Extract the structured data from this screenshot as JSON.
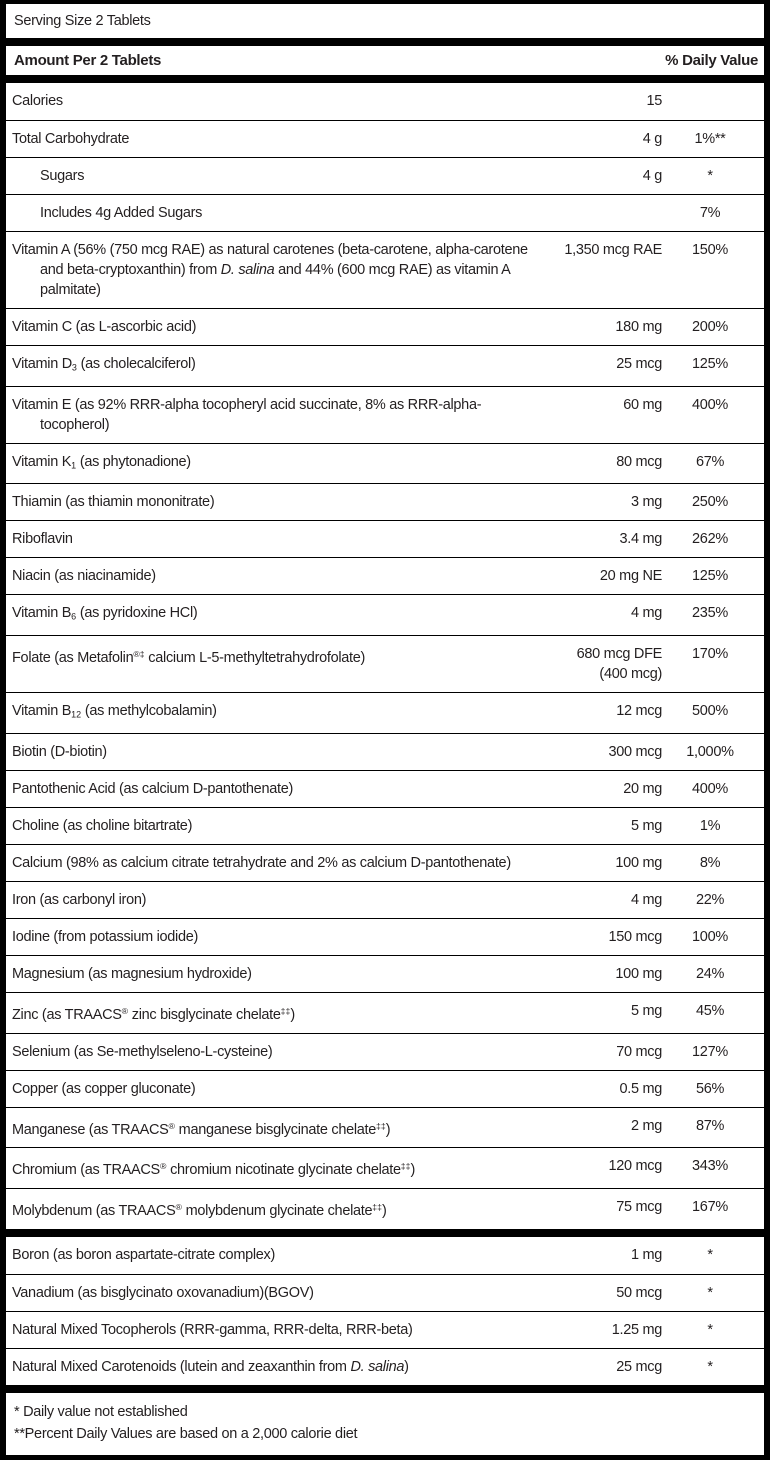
{
  "panel": {
    "serving_size": "Serving Size 2 Tablets",
    "header": {
      "amount_column_label": "Amount Per 2 Tablets",
      "daily_value_column_label": "% Daily Value"
    },
    "colors": {
      "text": "#231f20",
      "rules_and_bars": "#000000",
      "background": "#ffffff"
    },
    "main_rows": [
      {
        "label": "Calories",
        "amount": "15",
        "dv": "",
        "indent": false
      },
      {
        "label": "Total Carbohydrate",
        "amount": "4 g",
        "dv": "1%**",
        "indent": false
      },
      {
        "label": "Sugars",
        "amount": "4 g",
        "dv": "*",
        "indent": true
      },
      {
        "label": "Includes 4g Added Sugars",
        "amount": "",
        "dv": "7%",
        "indent": true
      },
      {
        "label": "Vitamin A (56% (750 mcg RAE) as natural carotenes (beta-carotene, alpha-carotene and beta-cryptoxanthin) from ~D. salina~ and 44% (600 mcg RAE) as vitamin A palmitate)",
        "amount": "1,350 mcg RAE",
        "dv": "150%",
        "indent": false
      },
      {
        "label": "Vitamin C (as L-ascorbic acid)",
        "amount": "180 mg",
        "dv": "200%",
        "indent": false
      },
      {
        "label": "Vitamin D_{3} (as cholecalciferol)",
        "amount": "25 mcg",
        "dv": "125%",
        "indent": false
      },
      {
        "label": "Vitamin E (as 92% RRR-alpha tocopheryl acid succinate, 8% as RRR-alpha-tocopherol)",
        "amount": "60 mg",
        "dv": "400%",
        "indent": false
      },
      {
        "label": "Vitamin K_{1} (as phytonadione)",
        "amount": "80 mcg",
        "dv": "67%",
        "indent": false
      },
      {
        "label": "Thiamin (as thiamin mononitrate)",
        "amount": "3 mg",
        "dv": "250%",
        "indent": false
      },
      {
        "label": "Riboflavin",
        "amount": "3.4 mg",
        "dv": "262%",
        "indent": false
      },
      {
        "label": "Niacin (as niacinamide)",
        "amount": "20 mg NE",
        "dv": "125%",
        "indent": false
      },
      {
        "label": "Vitamin B_{6} (as pyridoxine HCl)",
        "amount": "4 mg",
        "dv": "235%",
        "indent": false
      },
      {
        "label": "Folate (as Metafolin^{®‡} calcium L-5-methyltetrahydrofolate)",
        "amount": "680 mcg DFE\n(400 mcg)",
        "dv": "170%",
        "indent": false
      },
      {
        "label": "Vitamin B_{12} (as methylcobalamin)",
        "amount": "12 mcg",
        "dv": "500%",
        "indent": false
      },
      {
        "label": "Biotin (D-biotin)",
        "amount": "300 mcg",
        "dv": "1,000%",
        "indent": false
      },
      {
        "label": "Pantothenic Acid (as calcium D-pantothenate)",
        "amount": "20 mg",
        "dv": "400%",
        "indent": false
      },
      {
        "label": "Choline (as choline bitartrate)",
        "amount": "5 mg",
        "dv": "1%",
        "indent": false
      },
      {
        "label": "Calcium (98% as calcium citrate tetrahydrate and 2% as calcium D-pantothenate)",
        "amount": "100 mg",
        "dv": "8%",
        "indent": false
      },
      {
        "label": "Iron (as carbonyl iron)",
        "amount": "4 mg",
        "dv": "22%",
        "indent": false
      },
      {
        "label": "Iodine (from potassium iodide)",
        "amount": "150 mcg",
        "dv": "100%",
        "indent": false
      },
      {
        "label": "Magnesium (as magnesium hydroxide)",
        "amount": "100 mg",
        "dv": "24%",
        "indent": false
      },
      {
        "label": "Zinc (as TRAACS^{®} zinc bisglycinate chelate^{‡‡})",
        "amount": "5 mg",
        "dv": "45%",
        "indent": false
      },
      {
        "label": "Selenium (as Se-methylseleno-L-cysteine)",
        "amount": "70 mcg",
        "dv": "127%",
        "indent": false
      },
      {
        "label": "Copper (as copper gluconate)",
        "amount": "0.5 mg",
        "dv": "56%",
        "indent": false
      },
      {
        "label": "Manganese (as TRAACS^{®} manganese bisglycinate chelate^{‡‡})",
        "amount": "2 mg",
        "dv": "87%",
        "indent": false
      },
      {
        "label": "Chromium (as TRAACS^{®} chromium nicotinate glycinate chelate^{‡‡})",
        "amount": "120 mcg",
        "dv": "343%",
        "indent": false
      },
      {
        "label": "Molybdenum (as TRAACS^{®} molybdenum glycinate chelate^{‡‡})",
        "amount": "75 mcg",
        "dv": "167%",
        "indent": false
      }
    ],
    "extra_rows": [
      {
        "label": "Boron (as boron aspartate-citrate complex)",
        "amount": "1 mg",
        "dv": "*",
        "indent": false
      },
      {
        "label": "Vanadium (as bisglycinato oxovanadium)(BGOV)",
        "amount": "50 mcg",
        "dv": "*",
        "indent": false
      },
      {
        "label": "Natural Mixed Tocopherols (RRR-gamma, RRR-delta, RRR-beta)",
        "amount": "1.25 mg",
        "dv": "*",
        "indent": false
      },
      {
        "label": "Natural Mixed Carotenoids (lutein and zeaxanthin from ~D. salina~)",
        "amount": "25 mcg",
        "dv": "*",
        "indent": false
      }
    ],
    "footnotes": [
      "* Daily value not established",
      "**Percent Daily Values are based on a 2,000 calorie diet"
    ]
  }
}
